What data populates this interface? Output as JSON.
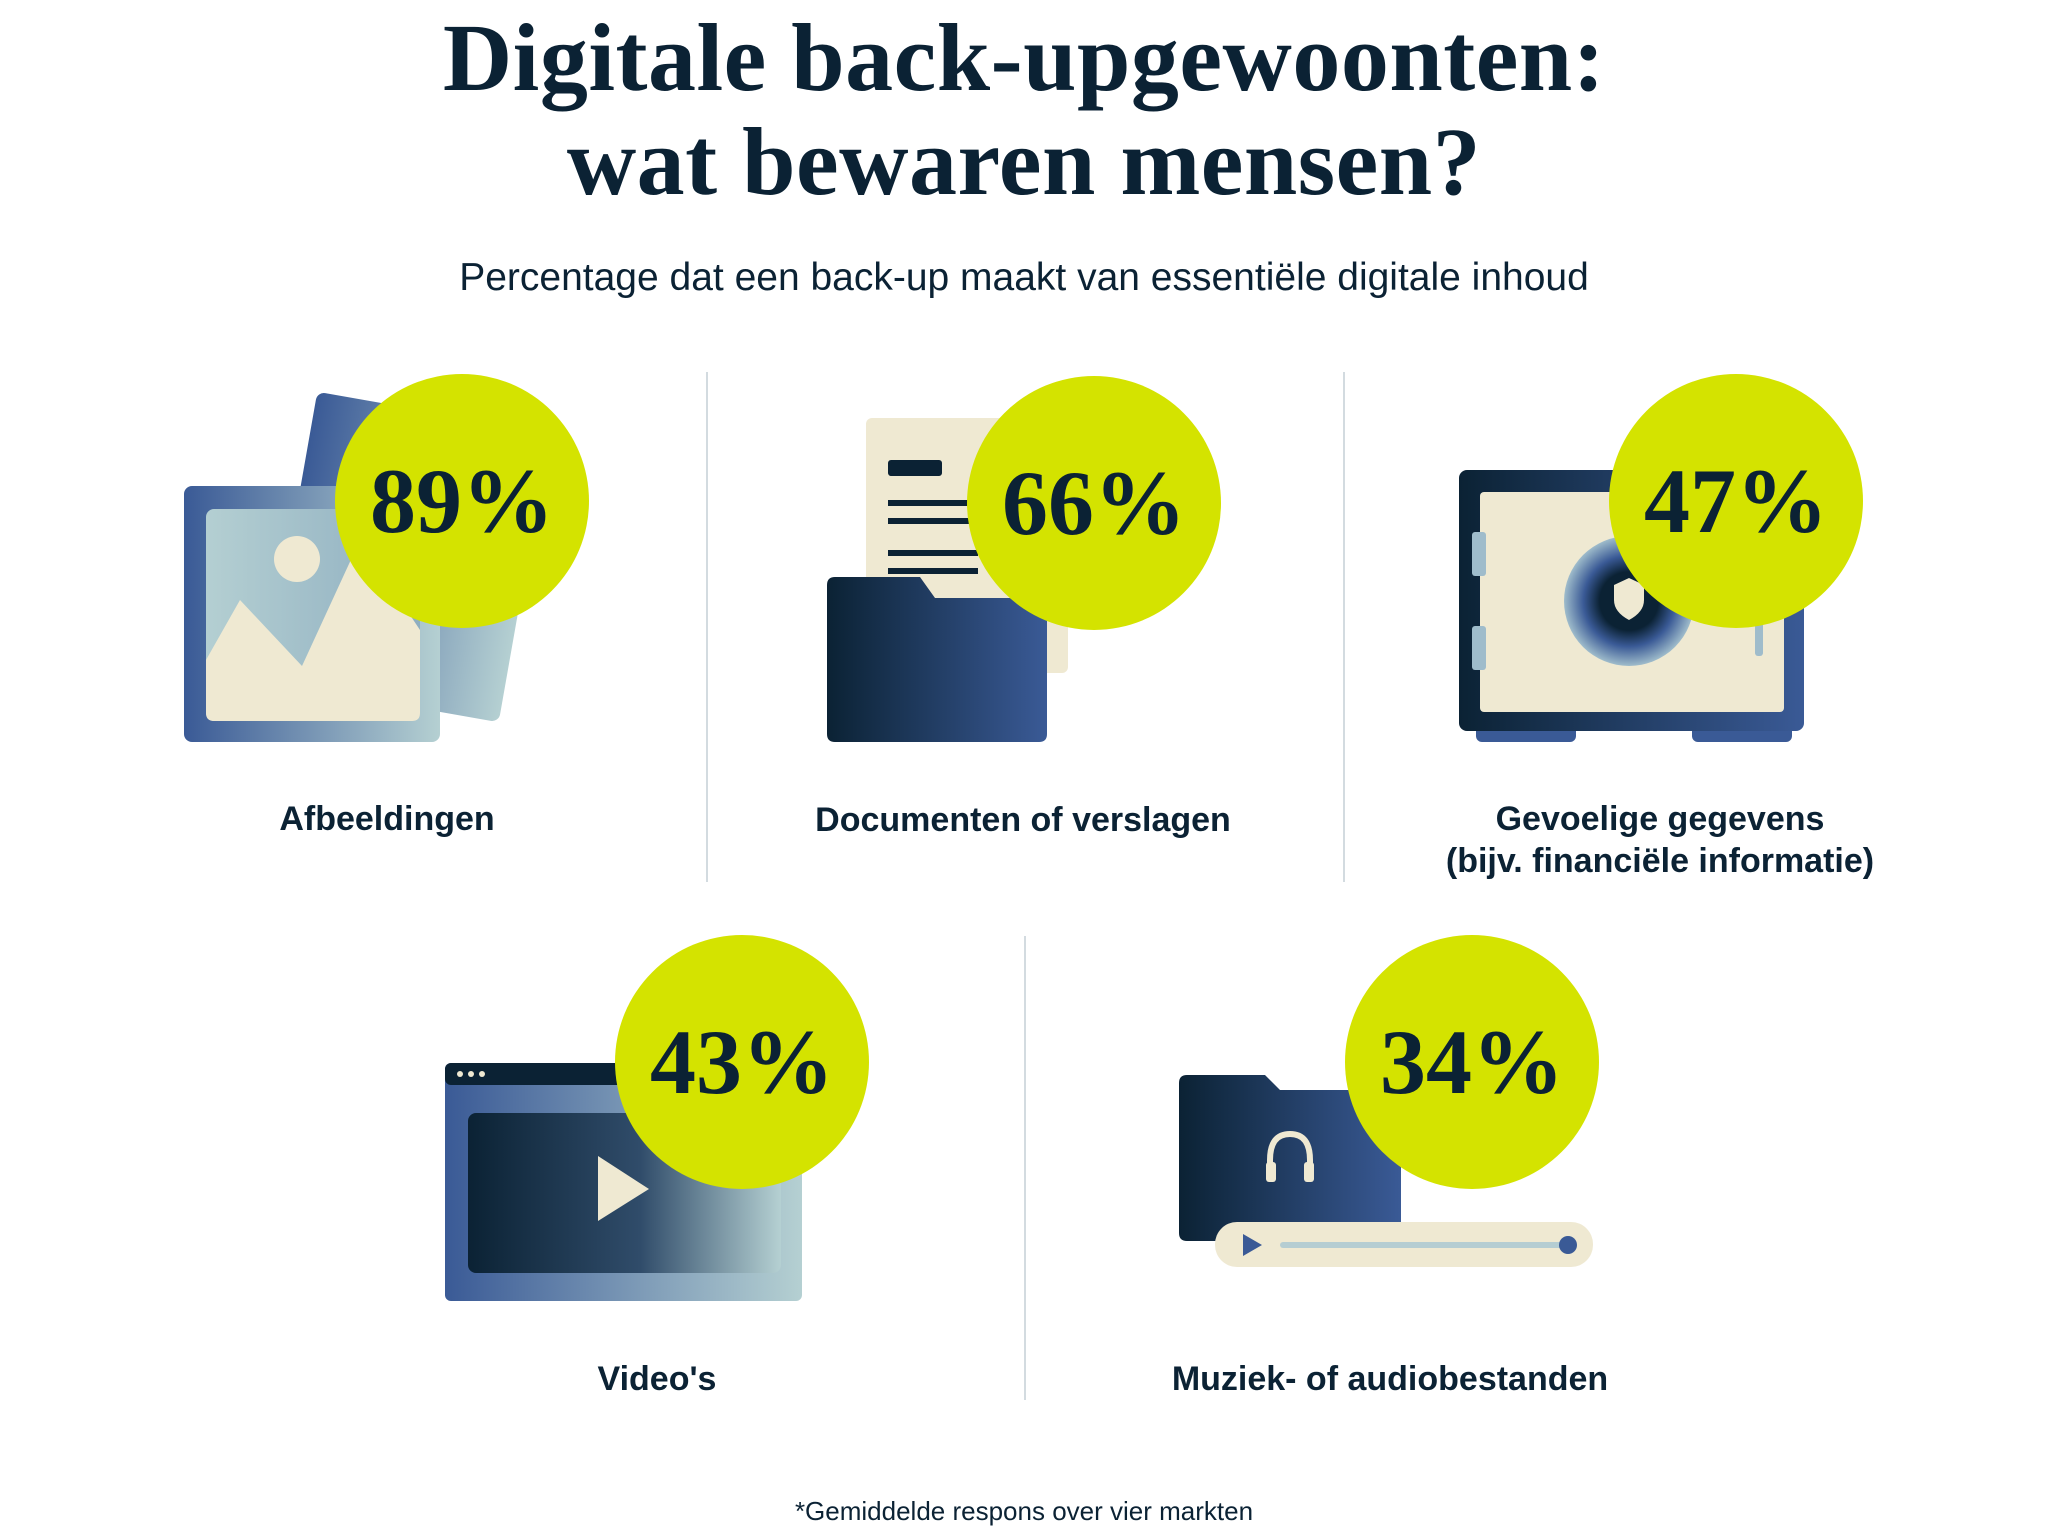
{
  "title": {
    "line1": "Digitale back-upgewoonten:",
    "line2": "wat bewaren mensen?"
  },
  "subtitle": "Percentage dat een back-up maakt van essentiële digitale inhoud",
  "colors": {
    "accent": "#d4e300",
    "navy": "#0b2234",
    "blue": "#3a5a96",
    "cream": "#efe9d2"
  },
  "items": [
    {
      "value": "89%",
      "label": "Afbeeldingen",
      "icon": "image-icon"
    },
    {
      "value": "66%",
      "label": "Documenten of verslagen",
      "icon": "document-folder-icon"
    },
    {
      "value": "47%",
      "label": "Gevoelige gegevens",
      "label2": "(bijv. financiële informatie)",
      "icon": "safe-icon"
    },
    {
      "value": "43%",
      "label": "Video's",
      "icon": "video-player-icon"
    },
    {
      "value": "34%",
      "label": "Muziek- of audiobestanden",
      "icon": "audio-folder-icon"
    }
  ],
  "footnote": "*Gemiddelde respons over vier markten"
}
